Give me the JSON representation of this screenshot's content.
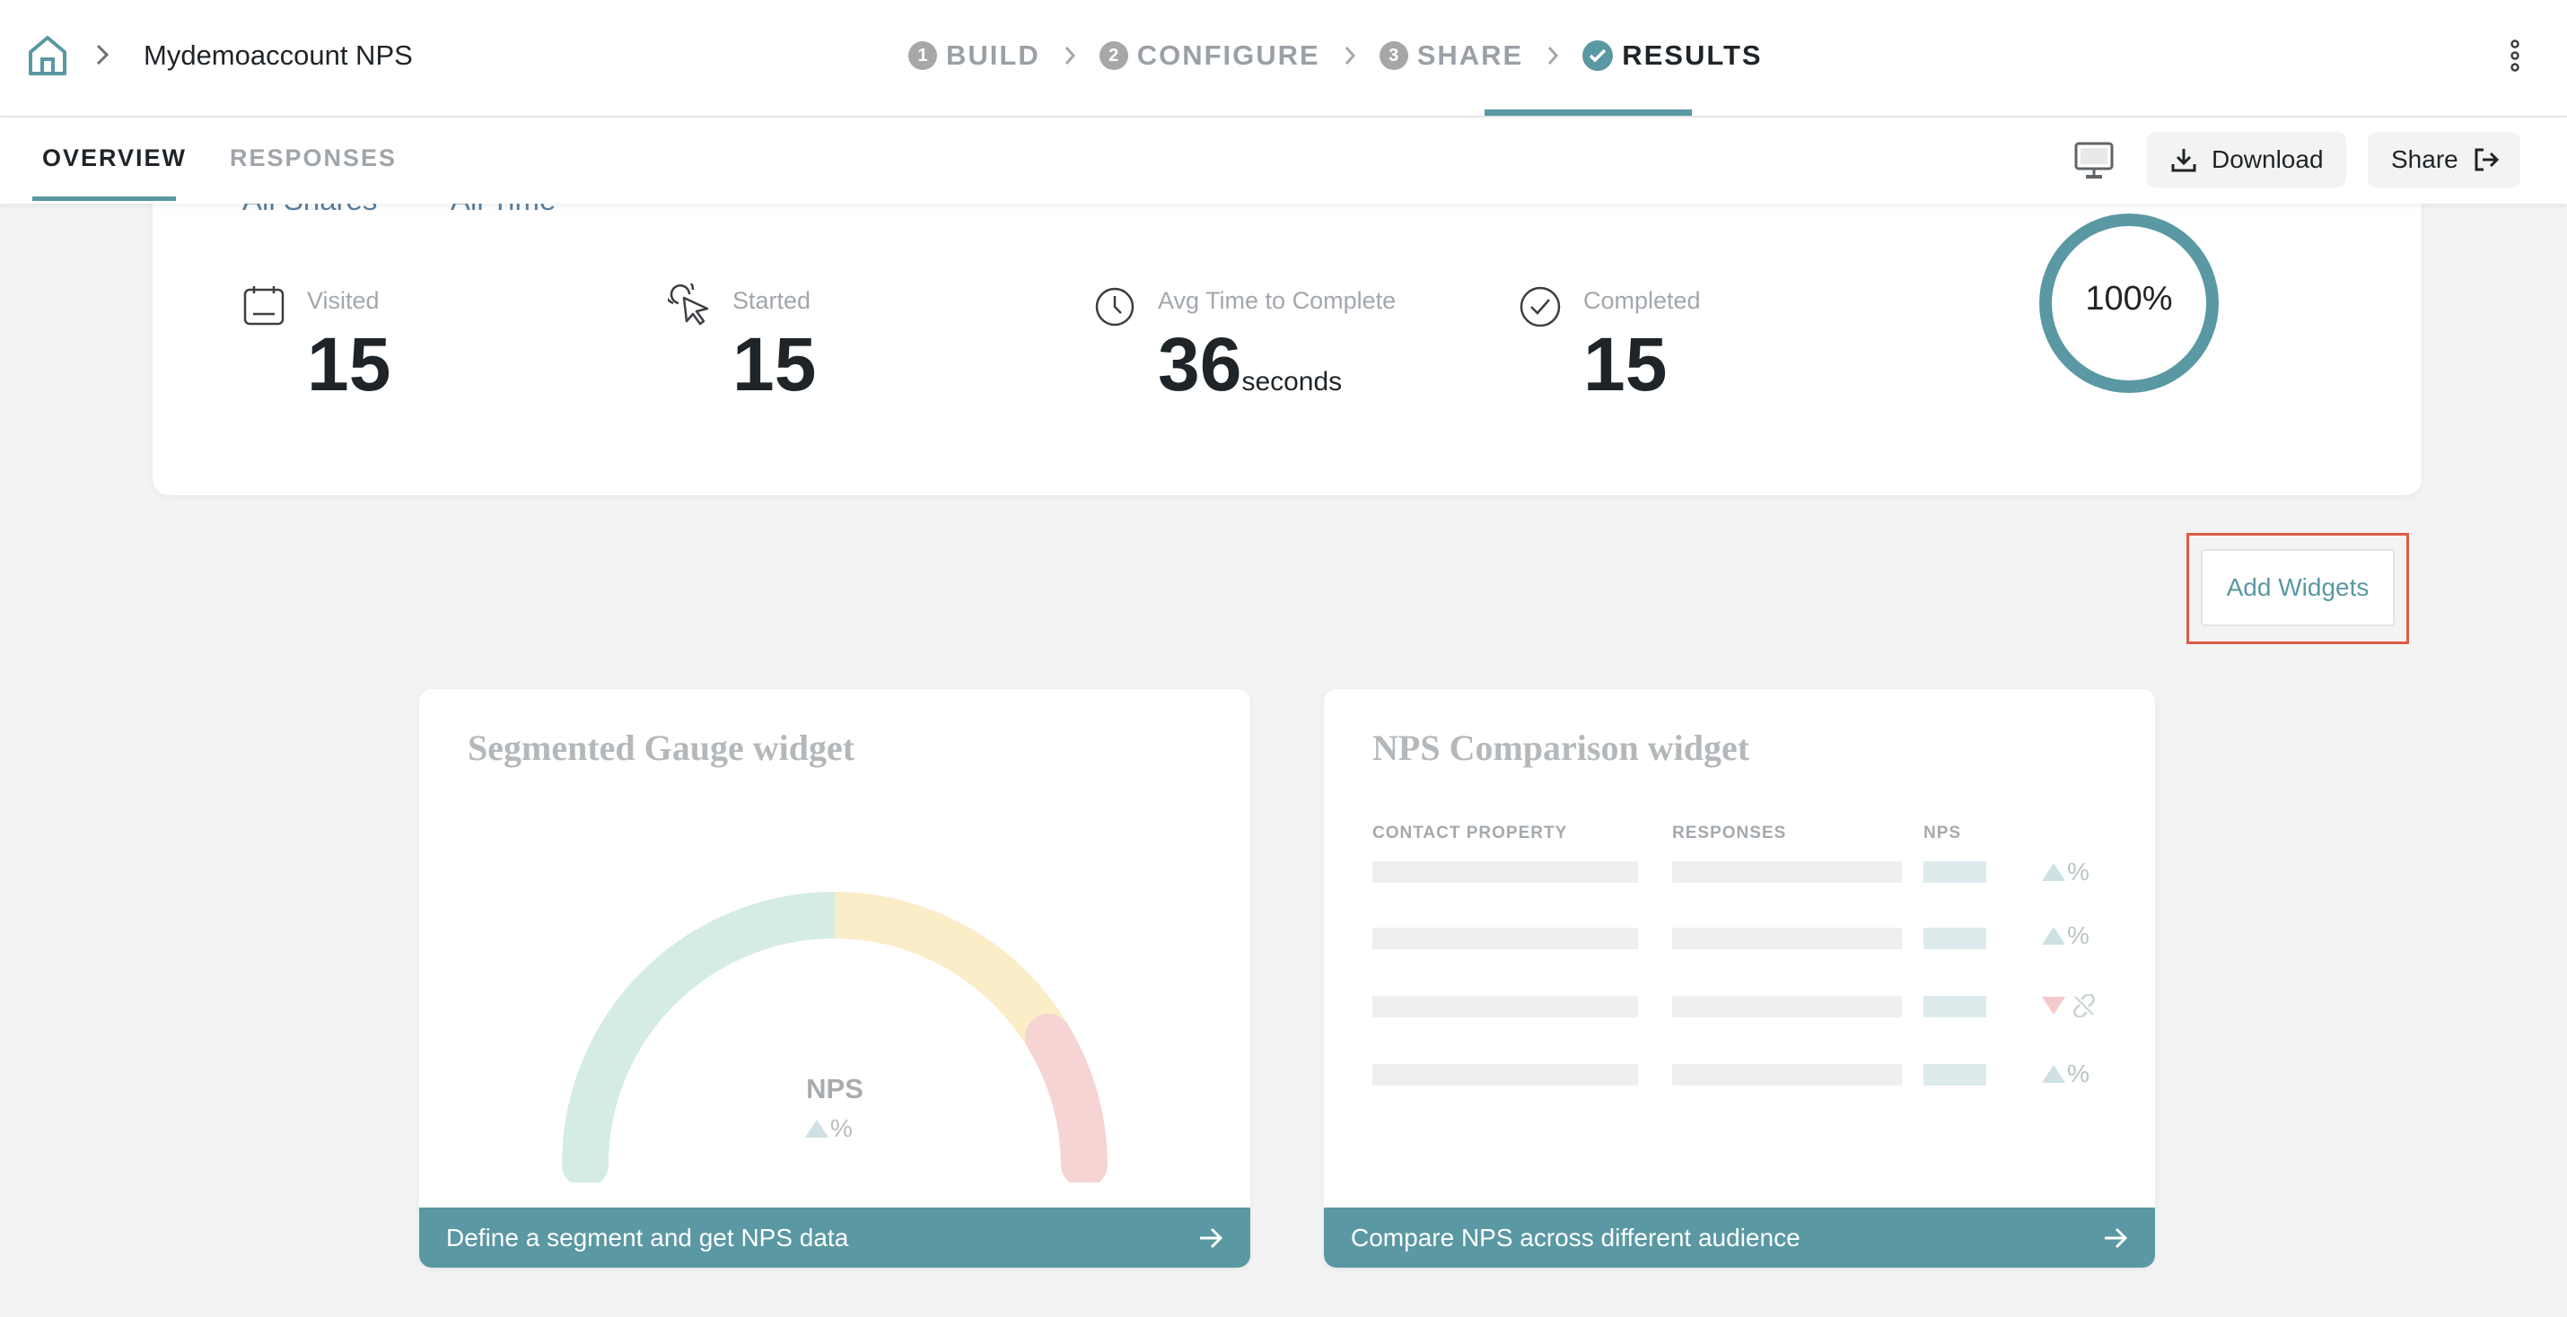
{
  "header": {
    "project_title": "Mydemoaccount NPS",
    "steps": [
      {
        "num": "1",
        "label": "BUILD"
      },
      {
        "num": "2",
        "label": "CONFIGURE"
      },
      {
        "num": "3",
        "label": "SHARE"
      },
      {
        "num": "",
        "label": "RESULTS",
        "state": "active"
      }
    ]
  },
  "subnav": {
    "tabs": [
      {
        "label": "OVERVIEW",
        "state": "active"
      },
      {
        "label": "RESPONSES"
      }
    ],
    "download_label": "Download",
    "share_label": "Share"
  },
  "stats": {
    "filters": [
      "All Shares",
      "All Time"
    ],
    "visited": {
      "label": "Visited",
      "value": "15"
    },
    "started": {
      "label": "Started",
      "value": "15"
    },
    "avg_time": {
      "label": "Avg Time to Complete",
      "value": "36",
      "unit": "seconds"
    },
    "completed": {
      "label": "Completed",
      "value": "15"
    },
    "completion_rate": "100%"
  },
  "add_widgets_label": "Add Widgets",
  "widgets": {
    "gauge": {
      "title": "Segmented Gauge widget",
      "nps_label": "NPS",
      "delta_unit": "%",
      "footer": "Define a segment and get NPS data"
    },
    "comparison": {
      "title": "NPS Comparison widget",
      "columns": [
        "CONTACT PROPERTY",
        "RESPONSES",
        "NPS"
      ],
      "trend_unit": "%",
      "footer": "Compare NPS across different audience"
    }
  },
  "colors": {
    "accent": "#5a98a3",
    "highlight": "#e05a47",
    "gauge_green": "#d5ece3",
    "gauge_yellow": "#faedc8",
    "gauge_red": "#f6d4d4"
  }
}
